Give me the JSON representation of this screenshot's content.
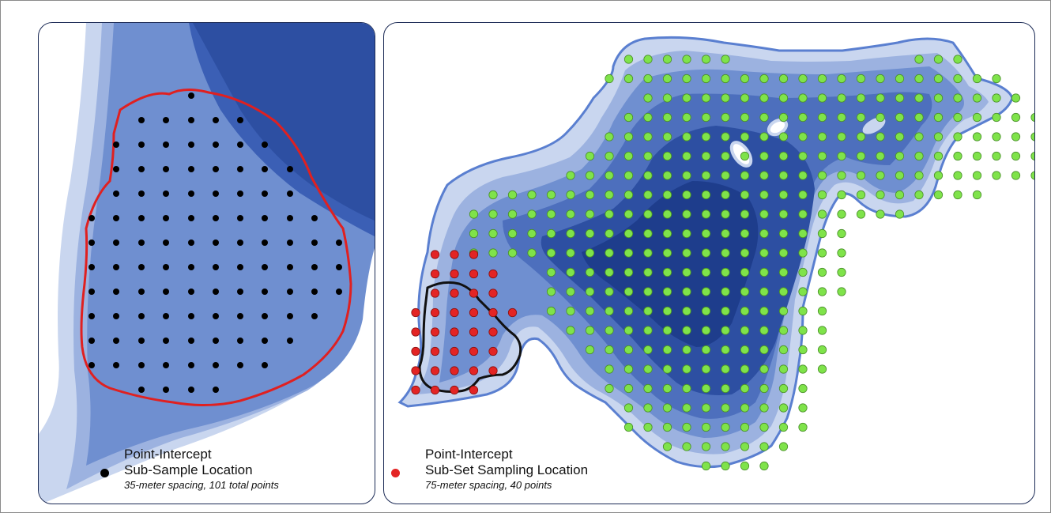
{
  "colors": {
    "water_light": "#c9d6ef",
    "water_mid1": "#9cb2e0",
    "water_mid2": "#6f8fd0",
    "water_mid3": "#4d6fbd",
    "water_deep": "#2d4fa2",
    "water_deepest": "#1e3d8c",
    "subsample_boundary": "#e02020",
    "subset_boundary": "#111111",
    "subsample_point": "#000000",
    "subset_point": "#e32424",
    "survey_point": "#7fe34a"
  },
  "left_legend": {
    "line1": "Point-Intercept",
    "line2": "Sub-Sample Location",
    "note": "35-meter spacing, 101 total points",
    "symbol": "black-dot"
  },
  "right_legend": {
    "line1": "Point-Intercept",
    "line2": "Sub-Set Sampling Location",
    "note": "75-meter spacing, 40 points",
    "symbol": "red-dot"
  }
}
